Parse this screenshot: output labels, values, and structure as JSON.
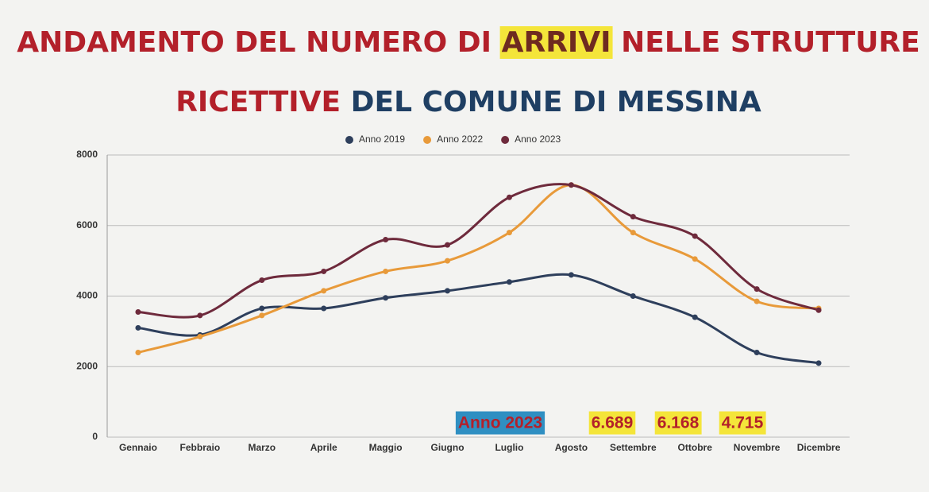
{
  "chart_data": {
    "type": "line",
    "title": [
      "ANDAMENTO DEL NUMERO DI ",
      "ARRIVI",
      " NELLE STRUTTURE",
      "RICETTIVE",
      " DEL COMUNE DI MESSINA"
    ],
    "categories": [
      "Gennaio",
      "Febbraio",
      "Marzo",
      "Aprile",
      "Maggio",
      "Giugno",
      "Luglio",
      "Agosto",
      "Settembre",
      "Ottobre",
      "Novembre",
      "Dicembre"
    ],
    "series": [
      {
        "name": "Anno 2019",
        "color": "#2e3f5c",
        "values": [
          3100,
          2900,
          3650,
          3650,
          3950,
          4150,
          4400,
          4600,
          4000,
          3400,
          2400,
          2100
        ]
      },
      {
        "name": "Anno 2022",
        "color": "#e89a3a",
        "values": [
          2400,
          2850,
          3450,
          4150,
          4700,
          5000,
          5800,
          7150,
          5800,
          5050,
          3850,
          3650
        ]
      },
      {
        "name": "Anno 2023",
        "color": "#6e2a3c",
        "values": [
          3550,
          3450,
          4450,
          4700,
          5600,
          5450,
          6800,
          7150,
          6250,
          5700,
          4200,
          3600
        ]
      }
    ],
    "ylim": [
      0,
      8000
    ],
    "yticks": [
      0,
      2000,
      4000,
      6000,
      8000
    ],
    "grid": true,
    "annotations": [
      "Anno 2023",
      "6.689",
      "6.168",
      "4.715"
    ]
  }
}
